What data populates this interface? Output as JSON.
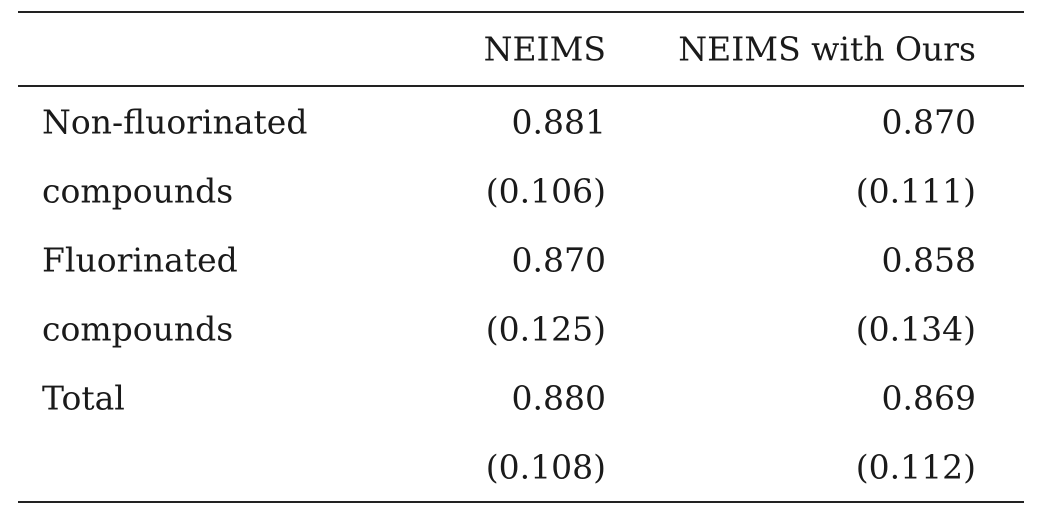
{
  "table": {
    "columns": [
      "",
      "NEIMS",
      "NEIMS with Ours"
    ],
    "rows": [
      {
        "label": "Non-fluorinated",
        "neims": "0.881",
        "ours": "0.870"
      },
      {
        "label": "compounds",
        "neims": "(0.106)",
        "ours": "(0.111)"
      },
      {
        "label": "Fluorinated",
        "neims": "0.870",
        "ours": "0.858"
      },
      {
        "label": "compounds",
        "neims": "(0.125)",
        "ours": "(0.134)"
      },
      {
        "label": "Total",
        "neims": "0.880",
        "ours": "0.869"
      },
      {
        "label": "",
        "neims": "(0.108)",
        "ours": "(0.112)"
      }
    ]
  }
}
